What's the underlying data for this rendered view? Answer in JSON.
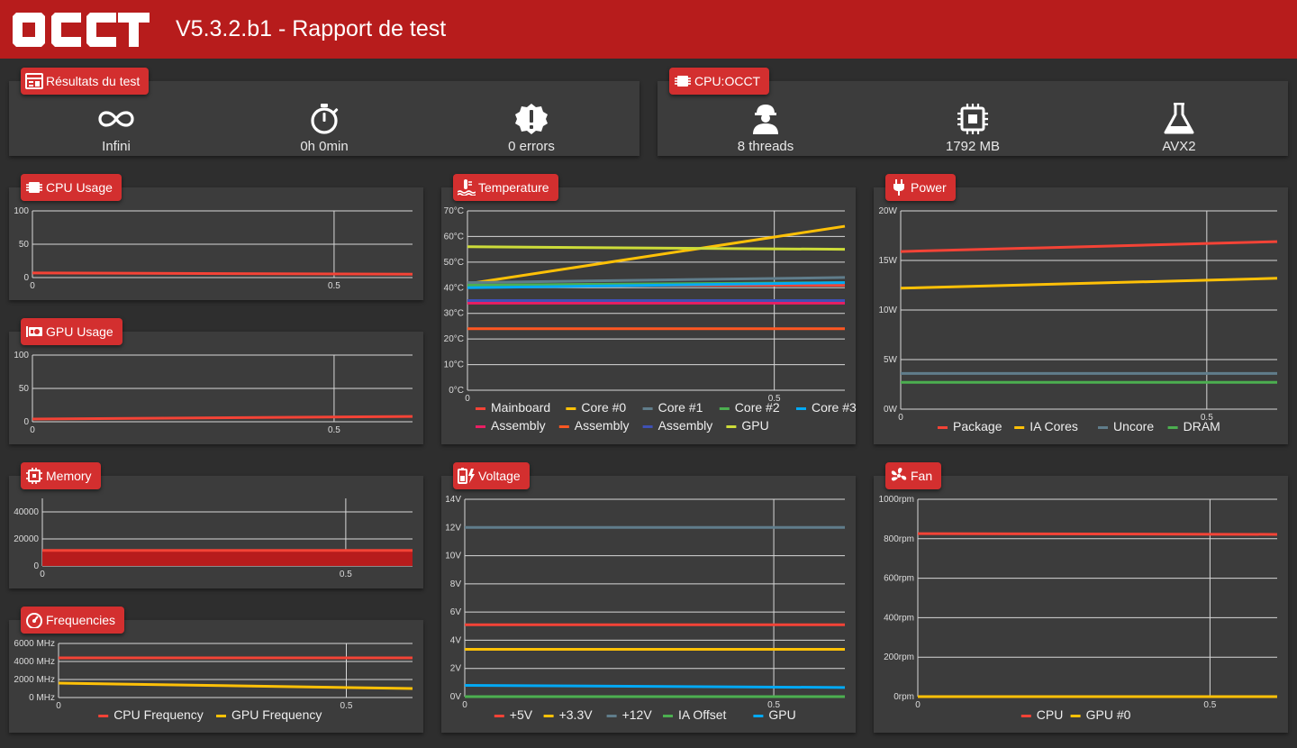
{
  "app": {
    "title": "V5.3.2.b1 - Rapport de test",
    "logo_text": "OCCT"
  },
  "results_card": {
    "title": "Résultats du test",
    "items": [
      {
        "icon": "infinity-icon",
        "label": "Infini"
      },
      {
        "icon": "stopwatch-icon",
        "label": "0h 0min"
      },
      {
        "icon": "error-alert-icon",
        "label": "0 errors"
      }
    ]
  },
  "cpu_card": {
    "title": "CPU:OCCT",
    "items": [
      {
        "icon": "worker-icon",
        "label": "8 threads"
      },
      {
        "icon": "chip-icon",
        "label": "1792 MB"
      },
      {
        "icon": "flask-icon",
        "label": "AVX2"
      }
    ]
  },
  "colors": {
    "red": "#f44336",
    "yellow": "#ffc107",
    "bluegrey": "#607d8b",
    "green": "#4caf50",
    "cyan": "#03a9f4",
    "pink": "#e91e63",
    "orange": "#ff5722",
    "indigo": "#3f51b5",
    "lime": "#cddc39",
    "fill_red": "#b71c1c",
    "badge_red": "#d32f2f"
  },
  "chart_data": [
    {
      "id": "cpu_usage",
      "title": "CPU Usage",
      "type": "line",
      "ylim": [
        0,
        100
      ],
      "y_ticks": [
        "100",
        "50",
        "0"
      ],
      "x_ticks": [
        "0",
        "0.5"
      ],
      "xlim": [
        0,
        0.63
      ],
      "series": [
        {
          "color": "#f44336",
          "x": [
            0,
            0.63
          ],
          "y": [
            7,
            5
          ]
        }
      ]
    },
    {
      "id": "gpu_usage",
      "title": "GPU Usage",
      "type": "line",
      "ylim": [
        0,
        100
      ],
      "y_ticks": [
        "100",
        "50",
        "0"
      ],
      "x_ticks": [
        "0",
        "0.5"
      ],
      "xlim": [
        0,
        0.63
      ],
      "series": [
        {
          "color": "#f44336",
          "x": [
            0,
            0.63
          ],
          "y": [
            4,
            8
          ]
        }
      ]
    },
    {
      "id": "memory",
      "title": "Memory",
      "type": "area",
      "ylim": [
        0,
        50000
      ],
      "y_ticks": [
        "40000",
        "20000",
        "0"
      ],
      "x_ticks": [
        "0",
        "0.5"
      ],
      "xlim": [
        0,
        0.61
      ],
      "series": [
        {
          "color": "#f44336",
          "x": [
            0,
            0.61
          ],
          "y": [
            11500,
            11500
          ]
        }
      ]
    },
    {
      "id": "frequencies",
      "title": "Frequencies",
      "type": "line",
      "ylim": [
        0,
        6000
      ],
      "y_ticks": [
        "6000 MHz",
        "4000 MHz",
        "2000 MHz",
        "0 MHz"
      ],
      "x_ticks": [
        "0",
        "0.5"
      ],
      "xlim": [
        0,
        0.615
      ],
      "series": [
        {
          "name": "CPU Frequency",
          "color": "#f44336",
          "x": [
            0,
            0.615
          ],
          "y": [
            4400,
            4400
          ]
        },
        {
          "name": "GPU Frequency",
          "color": "#ffc107",
          "x": [
            0,
            0.615
          ],
          "y": [
            1600,
            1000
          ]
        }
      ]
    },
    {
      "id": "temperature",
      "title": "Temperature",
      "type": "line",
      "ylim": [
        0,
        70
      ],
      "y_ticks": [
        "70°C",
        "60°C",
        "50°C",
        "40°C",
        "30°C",
        "20°C",
        "10°C",
        "0°C"
      ],
      "x_ticks": [
        "0",
        "0.5"
      ],
      "xlim": [
        0,
        0.615
      ],
      "series": [
        {
          "name": "Mainboard",
          "color": "#f44336",
          "x": [
            0,
            0.615
          ],
          "y": [
            41,
            41
          ]
        },
        {
          "name": "Core #0",
          "color": "#ffc107",
          "x": [
            0,
            0.615
          ],
          "y": [
            41.5,
            64
          ]
        },
        {
          "name": "Core #1",
          "color": "#607d8b",
          "x": [
            0,
            0.615
          ],
          "y": [
            42,
            44
          ]
        },
        {
          "name": "Core #2",
          "color": "#4caf50",
          "x": [
            0,
            0.615
          ],
          "y": [
            41,
            42
          ]
        },
        {
          "name": "Core #3",
          "color": "#03a9f4",
          "x": [
            0,
            0.615
          ],
          "y": [
            40,
            42
          ]
        },
        {
          "name": "Assembly",
          "color": "#e91e63",
          "x": [
            0,
            0.615
          ],
          "y": [
            34,
            34
          ]
        },
        {
          "name": "Assembly",
          "color": "#ff5722",
          "x": [
            0,
            0.615
          ],
          "y": [
            24,
            24
          ]
        },
        {
          "name": "Assembly",
          "color": "#3f51b5",
          "x": [
            0,
            0.615
          ],
          "y": [
            35,
            35
          ]
        },
        {
          "name": "GPU",
          "color": "#cddc39",
          "x": [
            0,
            0.615
          ],
          "y": [
            56,
            55
          ]
        }
      ]
    },
    {
      "id": "voltage",
      "title": "Voltage",
      "type": "line",
      "ylim": [
        0,
        14
      ],
      "y_ticks": [
        "14V",
        "12V",
        "10V",
        "8V",
        "6V",
        "4V",
        "2V",
        "0V"
      ],
      "x_ticks": [
        "0",
        "0.5"
      ],
      "xlim": [
        0,
        0.615
      ],
      "series": [
        {
          "name": "+5V",
          "color": "#f44336",
          "x": [
            0,
            0.615
          ],
          "y": [
            5.1,
            5.1
          ]
        },
        {
          "name": "+3.3V",
          "color": "#ffc107",
          "x": [
            0,
            0.615
          ],
          "y": [
            3.36,
            3.36
          ]
        },
        {
          "name": "+12V",
          "color": "#607d8b",
          "x": [
            0,
            0.615
          ],
          "y": [
            12,
            12
          ]
        },
        {
          "name": "IA Offset",
          "color": "#4caf50",
          "x": [
            0,
            0.615
          ],
          "y": [
            0,
            0
          ]
        },
        {
          "name": "GPU",
          "color": "#03a9f4",
          "x": [
            0,
            0.615
          ],
          "y": [
            0.8,
            0.65
          ]
        }
      ]
    },
    {
      "id": "power",
      "title": "Power",
      "type": "line",
      "ylim": [
        0,
        20
      ],
      "y_ticks": [
        "20W",
        "15W",
        "10W",
        "5W",
        "0W"
      ],
      "x_ticks": [
        "0",
        "0.5"
      ],
      "xlim": [
        0,
        0.615
      ],
      "series": [
        {
          "name": "Package",
          "color": "#f44336",
          "x": [
            0,
            0.615
          ],
          "y": [
            15.9,
            16.9
          ]
        },
        {
          "name": "IA Cores",
          "color": "#ffc107",
          "x": [
            0,
            0.615
          ],
          "y": [
            12.2,
            13.2
          ]
        },
        {
          "name": "Uncore",
          "color": "#607d8b",
          "x": [
            0,
            0.615
          ],
          "y": [
            3.6,
            3.6
          ]
        },
        {
          "name": "DRAM",
          "color": "#4caf50",
          "x": [
            0,
            0.615
          ],
          "y": [
            2.7,
            2.7
          ]
        }
      ]
    },
    {
      "id": "fan",
      "title": "Fan",
      "type": "line",
      "ylim": [
        0,
        1000
      ],
      "y_ticks": [
        "1000rpm",
        "800rpm",
        "600rpm",
        "400rpm",
        "200rpm",
        "0rpm"
      ],
      "x_ticks": [
        "0",
        "0.5"
      ],
      "xlim": [
        0,
        0.615
      ],
      "series": [
        {
          "name": "CPU",
          "color": "#f44336",
          "x": [
            0,
            0.615
          ],
          "y": [
            826,
            822
          ]
        },
        {
          "name": "GPU #0",
          "color": "#ffc107",
          "x": [
            0,
            0.615
          ],
          "y": [
            0,
            0
          ]
        }
      ]
    }
  ]
}
